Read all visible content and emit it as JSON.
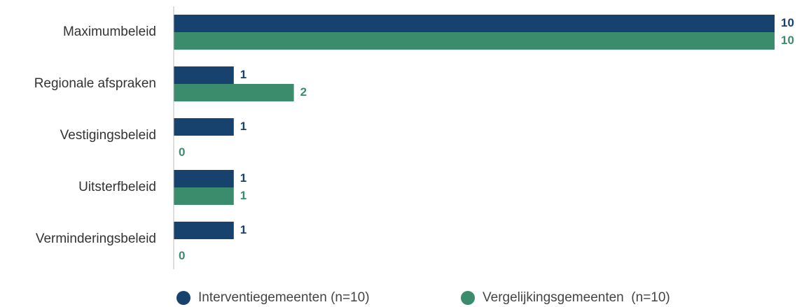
{
  "chart_data": {
    "type": "bar",
    "orientation": "horizontal",
    "categories": [
      "Maximumbeleid",
      "Regionale afspraken",
      "Vestigingsbeleid",
      "Uitsterfbeleid",
      "Verminderingsbeleid"
    ],
    "series": [
      {
        "name": "Interventiegemeenten (n=10)",
        "color": "#17426e",
        "values": [
          10,
          1,
          1,
          1,
          1
        ]
      },
      {
        "name": "Vergelijkingsgemeenten  (n=10)",
        "color": "#3a8c6c",
        "values": [
          10,
          2,
          0,
          1,
          0
        ]
      }
    ],
    "xlim": [
      0,
      10
    ],
    "legend": "bottom"
  }
}
